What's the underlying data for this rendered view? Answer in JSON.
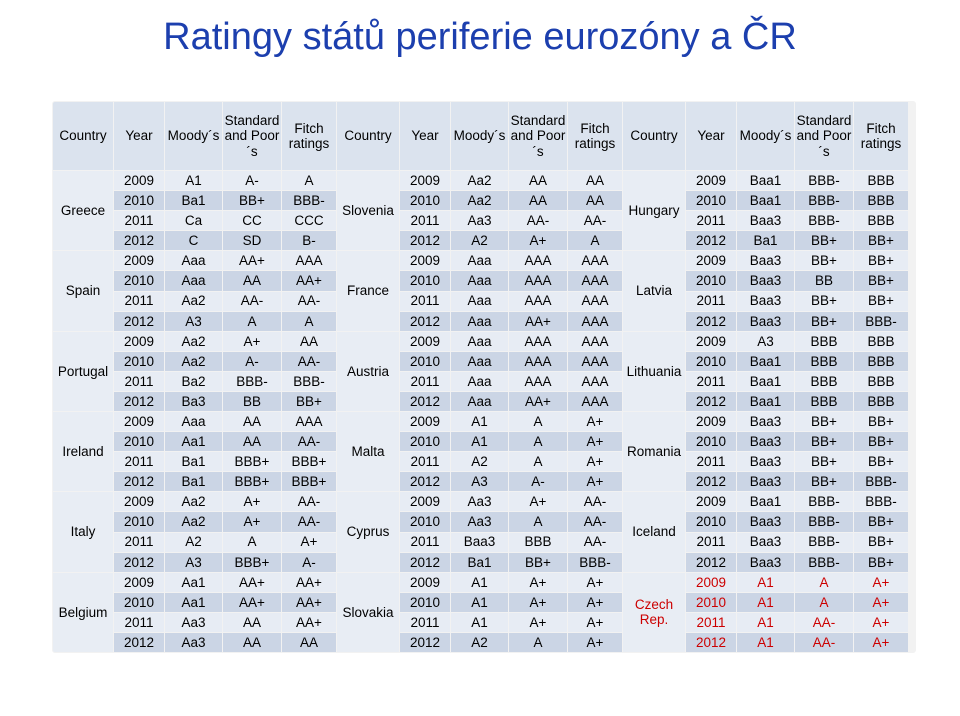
{
  "title": "Ratingy států periferie eurozóny a ČR",
  "headers": [
    "Country",
    "Year",
    "Moody´s",
    "Standard and Poor´s",
    "Fitch ratings",
    "Country",
    "Year",
    "Moody´s",
    "Standard and Poor´s",
    "Fitch ratings",
    "Country",
    "Year",
    "Moody´s",
    "Standard and Poor´s",
    "Fitch ratings"
  ],
  "columns": [
    {
      "countries": [
        {
          "name": "Greece",
          "rows": [
            [
              "2009",
              "A1",
              "A-",
              "A"
            ],
            [
              "2010",
              "Ba1",
              "BB+",
              "BBB-"
            ],
            [
              "2011",
              "Ca",
              "CC",
              "CCC"
            ],
            [
              "2012",
              "C",
              "SD",
              "B-"
            ]
          ]
        },
        {
          "name": "Spain",
          "rows": [
            [
              "2009",
              "Aaa",
              "AA+",
              "AAA"
            ],
            [
              "2010",
              "Aaa",
              "AA",
              "AA+"
            ],
            [
              "2011",
              "Aa2",
              "AA-",
              "AA-"
            ],
            [
              "2012",
              "A3",
              "A",
              "A"
            ]
          ]
        },
        {
          "name": "Portugal",
          "rows": [
            [
              "2009",
              "Aa2",
              "A+",
              "AA"
            ],
            [
              "2010",
              "Aa2",
              "A-",
              "AA-"
            ],
            [
              "2011",
              "Ba2",
              "BBB-",
              "BBB-"
            ],
            [
              "2012",
              "Ba3",
              "BB",
              "BB+"
            ]
          ]
        },
        {
          "name": "Ireland",
          "rows": [
            [
              "2009",
              "Aaa",
              "AA",
              "AAA"
            ],
            [
              "2010",
              "Aa1",
              "AA",
              "AA-"
            ],
            [
              "2011",
              "Ba1",
              "BBB+",
              "BBB+"
            ],
            [
              "2012",
              "Ba1",
              "BBB+",
              "BBB+"
            ]
          ]
        },
        {
          "name": "Italy",
          "rows": [
            [
              "2009",
              "Aa2",
              "A+",
              "AA-"
            ],
            [
              "2010",
              "Aa2",
              "A+",
              "AA-"
            ],
            [
              "2011",
              "A2",
              "A",
              "A+"
            ],
            [
              "2012",
              "A3",
              "BBB+",
              "A-"
            ]
          ]
        },
        {
          "name": "Belgium",
          "rows": [
            [
              "2009",
              "Aa1",
              "AA+",
              "AA+"
            ],
            [
              "2010",
              "Aa1",
              "AA+",
              "AA+"
            ],
            [
              "2011",
              "Aa3",
              "AA",
              "AA+"
            ],
            [
              "2012",
              "Aa3",
              "AA",
              "AA"
            ]
          ]
        }
      ]
    },
    {
      "countries": [
        {
          "name": "Slovenia",
          "rows": [
            [
              "2009",
              "Aa2",
              "AA",
              "AA"
            ],
            [
              "2010",
              "Aa2",
              "AA",
              "AA"
            ],
            [
              "2011",
              "Aa3",
              "AA-",
              "AA-"
            ],
            [
              "2012",
              "A2",
              "A+",
              "A"
            ]
          ]
        },
        {
          "name": "France",
          "rows": [
            [
              "2009",
              "Aaa",
              "AAA",
              "AAA"
            ],
            [
              "2010",
              "Aaa",
              "AAA",
              "AAA"
            ],
            [
              "2011",
              "Aaa",
              "AAA",
              "AAA"
            ],
            [
              "2012",
              "Aaa",
              "AA+",
              "AAA"
            ]
          ]
        },
        {
          "name": "Austria",
          "rows": [
            [
              "2009",
              "Aaa",
              "AAA",
              "AAA"
            ],
            [
              "2010",
              "Aaa",
              "AAA",
              "AAA"
            ],
            [
              "2011",
              "Aaa",
              "AAA",
              "AAA"
            ],
            [
              "2012",
              "Aaa",
              "AA+",
              "AAA"
            ]
          ]
        },
        {
          "name": "Malta",
          "rows": [
            [
              "2009",
              "A1",
              "A",
              "A+"
            ],
            [
              "2010",
              "A1",
              "A",
              "A+"
            ],
            [
              "2011",
              "A2",
              "A",
              "A+"
            ],
            [
              "2012",
              "A3",
              "A-",
              "A+"
            ]
          ]
        },
        {
          "name": "Cyprus",
          "rows": [
            [
              "2009",
              "Aa3",
              "A+",
              "AA-"
            ],
            [
              "2010",
              "Aa3",
              "A",
              "AA-"
            ],
            [
              "2011",
              "Baa3",
              "BBB",
              "AA-"
            ],
            [
              "2012",
              "Ba1",
              "BB+",
              "BBB-"
            ]
          ]
        },
        {
          "name": "Slovakia",
          "rows": [
            [
              "2009",
              "A1",
              "A+",
              "A+"
            ],
            [
              "2010",
              "A1",
              "A+",
              "A+"
            ],
            [
              "2011",
              "A1",
              "A+",
              "A+"
            ],
            [
              "2012",
              "A2",
              "A",
              "A+"
            ]
          ]
        }
      ]
    },
    {
      "countries": [
        {
          "name": "Hungary",
          "rows": [
            [
              "2009",
              "Baa1",
              "BBB-",
              "BBB"
            ],
            [
              "2010",
              "Baa1",
              "BBB-",
              "BBB"
            ],
            [
              "2011",
              "Baa3",
              "BBB-",
              "BBB"
            ],
            [
              "2012",
              "Ba1",
              "BB+",
              "BB+"
            ]
          ]
        },
        {
          "name": "Latvia",
          "rows": [
            [
              "2009",
              "Baa3",
              "BB+",
              "BB+"
            ],
            [
              "2010",
              "Baa3",
              "BB",
              "BB+"
            ],
            [
              "2011",
              "Baa3",
              "BB+",
              "BB+"
            ],
            [
              "2012",
              "Baa3",
              "BB+",
              "BBB-"
            ]
          ]
        },
        {
          "name": "Lithuania",
          "rows": [
            [
              "2009",
              "A3",
              "BBB",
              "BBB"
            ],
            [
              "2010",
              "Baa1",
              "BBB",
              "BBB"
            ],
            [
              "2011",
              "Baa1",
              "BBB",
              "BBB"
            ],
            [
              "2012",
              "Baa1",
              "BBB",
              "BBB"
            ]
          ]
        },
        {
          "name": "Romania",
          "rows": [
            [
              "2009",
              "Baa3",
              "BB+",
              "BB+"
            ],
            [
              "2010",
              "Baa3",
              "BB+",
              "BB+"
            ],
            [
              "2011",
              "Baa3",
              "BB+",
              "BB+"
            ],
            [
              "2012",
              "Baa3",
              "BB+",
              "BBB-"
            ]
          ]
        },
        {
          "name": "Iceland",
          "rows": [
            [
              "2009",
              "Baa1",
              "BBB-",
              "BBB-"
            ],
            [
              "2010",
              "Baa3",
              "BBB-",
              "BB+"
            ],
            [
              "2011",
              "Baa3",
              "BBB-",
              "BB+"
            ],
            [
              "2012",
              "Baa3",
              "BBB-",
              "BB+"
            ]
          ]
        },
        {
          "name": "Czech Rep.",
          "highlight": true,
          "rows": [
            [
              "2009",
              "A1",
              "A",
              "A+"
            ],
            [
              "2010",
              "A1",
              "A",
              "A+"
            ],
            [
              "2011",
              "A1",
              "AA-",
              "A+"
            ],
            [
              "2012",
              "A1",
              "AA-",
              "A+"
            ]
          ]
        }
      ]
    }
  ],
  "colors": {
    "title": "#1c3fae",
    "highlight": "#cc0000",
    "row_even": "#e7ecf4",
    "row_odd": "#cbd5e5",
    "header": "#dbe3ee"
  }
}
